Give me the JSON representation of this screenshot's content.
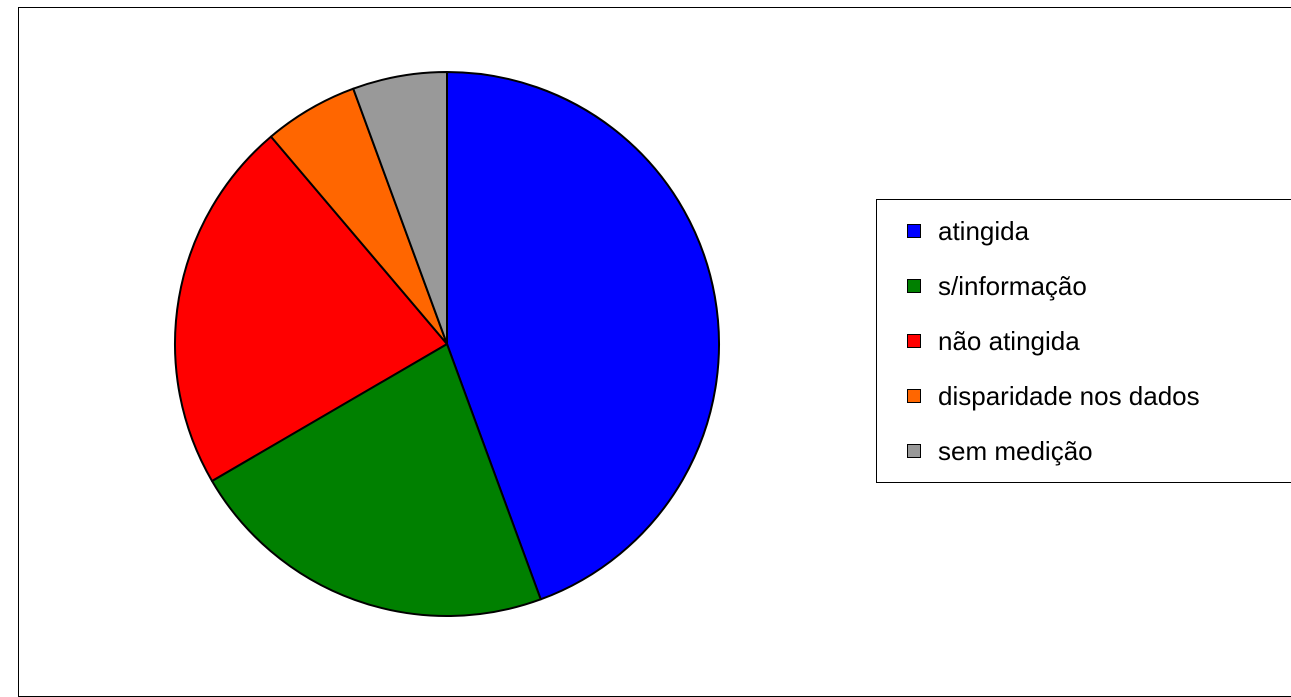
{
  "chart_data": {
    "type": "pie",
    "title": "",
    "slices": [
      {
        "label": "atingida",
        "value": 44.4,
        "color": "#0000ff"
      },
      {
        "label": "s/informação",
        "value": 22.2,
        "color": "#008000"
      },
      {
        "label": "não atingida",
        "value": 22.2,
        "color": "#ff0000"
      },
      {
        "label": "disparidade nos dados",
        "value": 5.6,
        "color": "#ff6600"
      },
      {
        "label": "sem medição",
        "value": 5.6,
        "color": "#999999"
      }
    ],
    "legend_position": "right"
  },
  "legend": {
    "items": [
      {
        "label": "atingida",
        "color": "#0000ff"
      },
      {
        "label": "s/informação",
        "color": "#008000"
      },
      {
        "label": "não atingida",
        "color": "#ff0000"
      },
      {
        "label": "disparidade nos dados",
        "color": "#ff6600"
      },
      {
        "label": "sem medição",
        "color": "#999999"
      }
    ]
  }
}
